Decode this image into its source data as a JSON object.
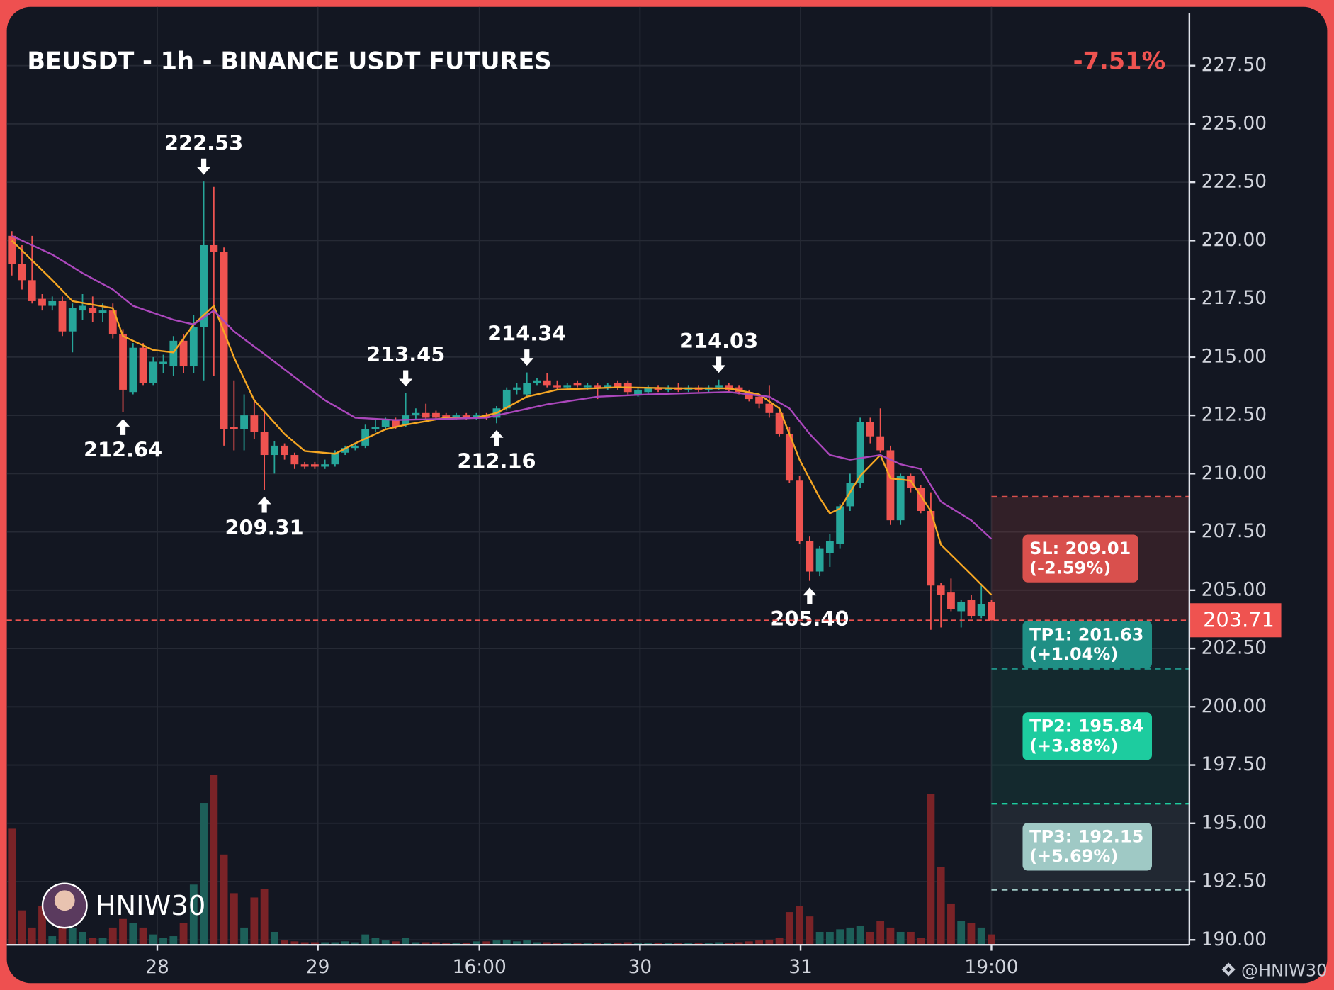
{
  "chart_data": {
    "type": "candlestick",
    "title": "BEUSDT - 1h - BINANCE USDT FUTURES",
    "change": "-7.51%",
    "watermark": "HNIW30",
    "footer": "@HNIW30",
    "up_color": "#26a69a",
    "down_color": "#ef5350",
    "volume_up_color": "#1d5f59",
    "volume_down_color": "#7a2327",
    "grid": true,
    "xlim": [
      -0.5,
      116.6
    ],
    "ylim": [
      189.79,
      230.02
    ],
    "xticks": [
      {
        "value": 14.4,
        "label": "28"
      },
      {
        "value": 30.3,
        "label": "29"
      },
      {
        "value": 46.3,
        "label": "16:00"
      },
      {
        "value": 62.2,
        "label": "30"
      },
      {
        "value": 78.1,
        "label": "31"
      },
      {
        "value": 97,
        "label": "19:00"
      }
    ],
    "yticks": [
      {
        "value": 190,
        "label": "190.00"
      },
      {
        "value": 192.5,
        "label": "192.50"
      },
      {
        "value": 195,
        "label": "195.00"
      },
      {
        "value": 197.5,
        "label": "197.50"
      },
      {
        "value": 200,
        "label": "200.00"
      },
      {
        "value": 202.5,
        "label": "202.50"
      },
      {
        "value": 205,
        "label": "205.00"
      },
      {
        "value": 207.5,
        "label": "207.50"
      },
      {
        "value": 210,
        "label": "210.00"
      },
      {
        "value": 212.5,
        "label": "212.50"
      },
      {
        "value": 215,
        "label": "215.00"
      },
      {
        "value": 217.5,
        "label": "217.50"
      },
      {
        "value": 220,
        "label": "220.00"
      },
      {
        "value": 222.5,
        "label": "222.50"
      },
      {
        "value": 225,
        "label": "225.00"
      },
      {
        "value": 227.5,
        "label": "227.50"
      }
    ],
    "open": [
      220.2,
      219.0,
      218.3,
      217.5,
      217.2,
      217.4,
      216.1,
      217.0,
      217.1,
      216.9,
      217.0,
      216.0,
      213.5,
      215.4,
      213.9,
      214.7,
      214.6,
      215.7,
      214.6,
      216.3,
      219.8,
      219.5,
      212.0,
      211.9,
      212.5,
      211.8,
      210.8,
      211.2,
      210.8,
      210.4,
      210.4,
      210.3,
      210.4,
      210.9,
      211.1,
      211.2,
      211.9,
      212.0,
      212.3,
      212.1,
      212.5,
      212.6,
      212.6,
      212.5,
      212.4,
      212.5,
      212.4,
      212.5,
      212.4,
      212.8,
      213.6,
      213.4,
      213.9,
      214.0,
      213.8,
      213.7,
      213.9,
      213.7,
      213.8,
      213.7,
      213.9,
      213.9,
      213.4,
      213.5,
      213.7,
      213.6,
      213.7,
      213.6,
      213.7,
      213.6,
      213.7,
      213.8,
      213.7,
      213.5,
      213.3,
      213.0,
      212.6,
      211.7,
      209.7,
      207.1,
      205.8,
      206.6,
      207.0,
      208.6,
      209.6,
      212.2,
      211.6,
      211.0,
      208.0,
      209.9,
      209.4,
      208.4,
      205.2,
      204.9,
      204.1,
      204.6,
      203.9,
      204.5
    ],
    "high": [
      220.4,
      219.8,
      220.2,
      217.7,
      217.6,
      217.6,
      217.3,
      217.7,
      217.6,
      217.3,
      217.3,
      216.2,
      215.6,
      215.6,
      215.0,
      215.1,
      215.9,
      216.0,
      216.8,
      222.53,
      222.3,
      219.7,
      214.0,
      213.4,
      213.2,
      212.7,
      211.4,
      211.3,
      210.9,
      210.5,
      210.5,
      210.6,
      211.0,
      211.2,
      211.3,
      212.1,
      212.3,
      212.4,
      212.4,
      213.45,
      212.8,
      213.0,
      212.7,
      212.6,
      212.6,
      212.6,
      212.6,
      212.6,
      212.9,
      213.7,
      213.9,
      214.34,
      214.1,
      214.3,
      214.0,
      213.9,
      214.0,
      213.9,
      213.9,
      213.9,
      214.0,
      214.0,
      213.7,
      213.8,
      213.8,
      213.8,
      213.9,
      213.8,
      213.8,
      213.8,
      214.03,
      213.9,
      213.8,
      213.6,
      213.4,
      213.8,
      212.8,
      212.0,
      209.9,
      207.3,
      206.9,
      207.4,
      208.7,
      210.0,
      212.4,
      212.4,
      212.8,
      211.2,
      210.0,
      210.0,
      209.5,
      209.2,
      205.3,
      205.5,
      204.6,
      204.8,
      205.2,
      204.6
    ],
    "low": [
      218.5,
      217.9,
      217.3,
      217.0,
      217.0,
      215.9,
      215.2,
      216.6,
      216.5,
      216.5,
      215.8,
      212.64,
      213.4,
      213.8,
      213.8,
      214.3,
      214.2,
      214.3,
      214.3,
      214.0,
      214.2,
      211.2,
      211.0,
      211.0,
      211.5,
      209.31,
      210.0,
      210.6,
      210.2,
      210.2,
      210.2,
      210.2,
      210.3,
      210.8,
      211.0,
      211.1,
      211.8,
      211.9,
      211.9,
      212.0,
      212.3,
      212.3,
      212.3,
      212.3,
      212.3,
      212.3,
      212.3,
      212.3,
      212.16,
      212.7,
      213.4,
      213.3,
      213.8,
      213.7,
      213.6,
      213.6,
      213.7,
      213.6,
      213.2,
      213.6,
      213.6,
      213.4,
      213.3,
      213.4,
      213.5,
      213.5,
      213.5,
      213.5,
      213.5,
      213.5,
      213.6,
      213.5,
      213.4,
      213.1,
      212.8,
      212.4,
      211.6,
      209.6,
      207.0,
      205.4,
      205.6,
      206.0,
      206.8,
      208.4,
      209.4,
      211.3,
      210.9,
      207.8,
      207.8,
      209.2,
      208.3,
      203.3,
      203.4,
      204.1,
      203.4,
      203.8,
      203.8,
      203.7
    ],
    "close": [
      219.0,
      218.3,
      217.4,
      217.2,
      217.4,
      216.1,
      217.1,
      217.2,
      216.9,
      217.0,
      216.0,
      213.6,
      215.4,
      213.9,
      214.8,
      214.8,
      215.7,
      214.6,
      216.3,
      219.8,
      219.5,
      211.9,
      211.9,
      212.5,
      211.8,
      210.8,
      211.2,
      210.8,
      210.4,
      210.3,
      210.3,
      210.4,
      210.9,
      211.1,
      211.2,
      211.9,
      212.0,
      212.3,
      212.0,
      212.5,
      212.6,
      212.4,
      212.4,
      212.4,
      212.5,
      212.4,
      212.5,
      212.4,
      212.8,
      213.6,
      213.7,
      213.9,
      214.0,
      213.8,
      213.7,
      213.8,
      213.8,
      213.8,
      213.7,
      213.8,
      213.7,
      213.5,
      213.6,
      213.7,
      213.6,
      213.7,
      213.6,
      213.7,
      213.6,
      213.7,
      213.8,
      213.6,
      213.5,
      213.2,
      213.0,
      212.6,
      211.7,
      209.7,
      207.1,
      205.8,
      206.8,
      207.1,
      208.6,
      209.6,
      212.2,
      211.6,
      211.0,
      208.0,
      209.9,
      209.4,
      208.4,
      205.2,
      204.8,
      204.2,
      204.5,
      203.9,
      204.4,
      203.71
    ],
    "volume": [
      135,
      40,
      20,
      45,
      10,
      50,
      20,
      15,
      8,
      8,
      20,
      30,
      25,
      20,
      12,
      8,
      10,
      25,
      70,
      165,
      198,
      105,
      60,
      20,
      55,
      65,
      15,
      5,
      4,
      3,
      3,
      3,
      3,
      4,
      3,
      12,
      8,
      5,
      4,
      8,
      3,
      3,
      3,
      2,
      2,
      2,
      4,
      4,
      5,
      6,
      4,
      5,
      3,
      3,
      2,
      2,
      2,
      2,
      2,
      2,
      2,
      3,
      2,
      2,
      2,
      2,
      2,
      2,
      2,
      2,
      3,
      2,
      3,
      4,
      5,
      6,
      8,
      38,
      45,
      33,
      15,
      15,
      18,
      20,
      22,
      15,
      28,
      20,
      15,
      15,
      8,
      175,
      90,
      48,
      28,
      25,
      20,
      12
    ],
    "lines": [
      {
        "color": "#f5a623",
        "x": [
          0,
          4,
          6,
          10,
          11,
          14,
          16,
          18,
          20,
          22,
          24,
          27,
          29,
          32,
          34,
          37,
          39,
          43,
          46,
          48,
          51,
          54,
          60,
          66,
          71,
          74,
          76,
          78,
          80,
          81,
          82,
          84,
          86,
          87,
          89,
          91,
          92,
          95,
          97
        ],
        "values": [
          220.0,
          218.3,
          217.4,
          217.1,
          215.9,
          215.3,
          215.2,
          216.4,
          217.2,
          214.98,
          213.15,
          211.7,
          210.97,
          210.85,
          211.3,
          211.9,
          212.1,
          212.4,
          212.4,
          212.6,
          213.3,
          213.6,
          213.7,
          213.66,
          213.66,
          213.4,
          212.8,
          210.6,
          208.95,
          208.3,
          208.5,
          209.9,
          210.8,
          209.8,
          209.7,
          208.4,
          206.95,
          205.67,
          204.8
        ]
      },
      {
        "color": "#ab47bc",
        "x": [
          0,
          4,
          7,
          10,
          12,
          16,
          18,
          20,
          22,
          26,
          31,
          34,
          38,
          43,
          47,
          53,
          58,
          63,
          71,
          75,
          77,
          79,
          81,
          83,
          86,
          88,
          90,
          92,
          95,
          97
        ],
        "values": [
          220.2,
          219.4,
          218.6,
          217.9,
          217.2,
          216.6,
          216.4,
          217.0,
          216.1,
          214.8,
          213.15,
          212.4,
          212.3,
          212.35,
          212.4,
          212.97,
          213.3,
          213.4,
          213.5,
          213.3,
          212.8,
          211.7,
          210.8,
          210.6,
          210.8,
          210.4,
          210.2,
          208.8,
          208.0,
          207.2
        ]
      }
    ],
    "annotations": [
      {
        "index": 19,
        "value": 222.53,
        "label": "222.53",
        "kind": "high"
      },
      {
        "index": 11,
        "value": 212.64,
        "label": "212.64",
        "kind": "low"
      },
      {
        "index": 25,
        "value": 209.31,
        "label": "209.31",
        "kind": "low"
      },
      {
        "index": 39,
        "value": 213.45,
        "label": "213.45",
        "kind": "high"
      },
      {
        "index": 48,
        "value": 212.16,
        "label": "212.16",
        "kind": "low"
      },
      {
        "index": 51,
        "value": 214.34,
        "label": "214.34",
        "kind": "high"
      },
      {
        "index": 70,
        "value": 214.03,
        "label": "214.03",
        "kind": "high"
      },
      {
        "index": 79,
        "value": 205.4,
        "label": "205.40",
        "kind": "low"
      }
    ],
    "last_price": 203.71,
    "levels": [
      {
        "label": "SL: 209.01",
        "change": "(-2.59%)",
        "value": 209.01,
        "color": "#d9504d"
      },
      {
        "label": "TP1: 201.63",
        "change": "(+1.04%)",
        "value": 201.63,
        "color": "#1f8f85"
      },
      {
        "label": "TP2: 195.84",
        "change": "(+3.88%)",
        "value": 195.84,
        "color": "#1dcc9f"
      },
      {
        "label": "TP3: 192.15",
        "change": "(+5.69%)",
        "value": 192.15,
        "color": "#9fc9c5"
      }
    ]
  }
}
